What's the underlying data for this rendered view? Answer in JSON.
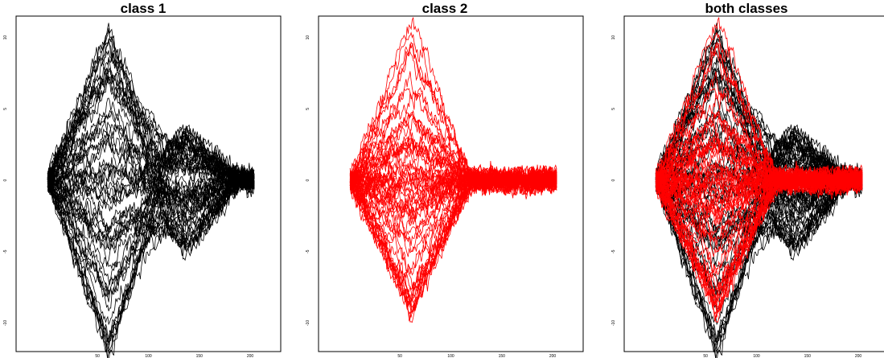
{
  "chart_data": [
    {
      "type": "line",
      "title": "class 1",
      "xlabel": "",
      "ylabel": "",
      "xlim": [
        -30,
        230
      ],
      "ylim": [
        -12,
        11.5
      ],
      "x_ticks": [
        50,
        100,
        150,
        200
      ],
      "y_ticks": [
        -10,
        -5,
        0,
        5,
        10
      ],
      "grid": false,
      "legend": "none",
      "series_color": "#000000",
      "series_count": 60,
      "series_length": 204,
      "profile": {
        "bump1_center": 60,
        "bump1_halfwidth": 60,
        "bump1_range": [
          -12.5,
          10.5
        ],
        "bump2_center": 135,
        "bump2_halfwidth": 55,
        "bump2_range": [
          -5,
          4
        ],
        "noise": 0.3
      }
    },
    {
      "type": "line",
      "title": "class 2",
      "xlabel": "",
      "ylabel": "",
      "xlim": [
        -30,
        230
      ],
      "ylim": [
        -12,
        11.5
      ],
      "x_ticks": [
        50,
        100,
        150,
        200
      ],
      "y_ticks": [
        -10,
        -5,
        0,
        5,
        10
      ],
      "grid": false,
      "legend": "none",
      "series_color": "#ff0000",
      "series_count": 60,
      "series_length": 204,
      "profile": {
        "bump1_center": 60,
        "bump1_halfwidth": 60,
        "bump1_range": [
          -9.5,
          12.5
        ],
        "bump2_center": 135,
        "bump2_halfwidth": 55,
        "bump2_range": [
          0,
          0
        ],
        "noise": 0.3
      }
    },
    {
      "type": "line",
      "title": "both classes",
      "xlabel": "",
      "ylabel": "",
      "xlim": [
        -30,
        230
      ],
      "ylim": [
        -12,
        11.5
      ],
      "x_ticks": [
        50,
        100,
        150,
        200
      ],
      "y_ticks": [
        -10,
        -5,
        0,
        5,
        10
      ],
      "grid": false,
      "legend": "none",
      "combines": [
        "class 1",
        "class 2"
      ],
      "series_colors": [
        "#000000",
        "#ff0000"
      ]
    }
  ]
}
